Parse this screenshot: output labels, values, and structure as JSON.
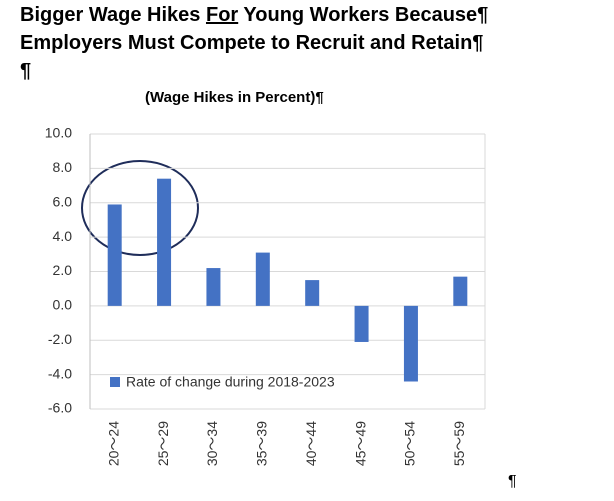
{
  "chart_data": {
    "type": "bar",
    "title": [
      [
        "Bigger Wage Hikes ",
        "For",
        " Young Workers Because¶"
      ],
      [
        "Employers Must Compete to Recruit and Retain¶"
      ],
      [
        "¶"
      ]
    ],
    "subtitle": "(Wage Hikes in Percent)¶",
    "end_mark": "¶",
    "categories": [
      "20〜24",
      "25〜29",
      "30〜34",
      "35〜39",
      "40〜44",
      "45〜49",
      "50〜54",
      "55〜59"
    ],
    "series": [
      {
        "name": "Rate of change during 2018-2023",
        "color": "#4472c4",
        "values": [
          5.9,
          7.4,
          2.2,
          3.1,
          1.5,
          -2.1,
          -4.4,
          1.7
        ]
      }
    ],
    "ylim": [
      -6,
      10
    ],
    "yticks": [
      {
        "value": -6,
        "label": "-6.0"
      },
      {
        "value": -4,
        "label": "-4.0"
      },
      {
        "value": -2,
        "label": "-2.0"
      },
      {
        "value": 0,
        "label": "0.0"
      },
      {
        "value": 2,
        "label": "2.0"
      },
      {
        "value": 4,
        "label": "4.0"
      },
      {
        "value": 6,
        "label": "6.0"
      },
      {
        "value": 8,
        "label": "8.0"
      },
      {
        "value": 10,
        "label": "10.0"
      }
    ],
    "grid": true
  }
}
